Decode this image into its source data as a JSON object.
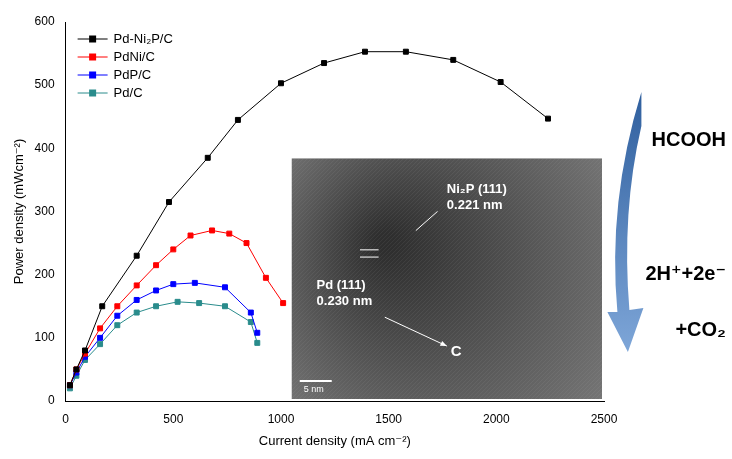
{
  "chart_data": {
    "type": "line",
    "x_label": "Current density (mA cm⁻²)",
    "y_label": "Power density (mWcm⁻²)",
    "xlim": [
      0,
      2500
    ],
    "xticks": [
      0,
      500,
      1000,
      1500,
      2000,
      2500
    ],
    "ylim": [
      0,
      600
    ],
    "yticks": [
      0,
      100,
      200,
      300,
      400,
      500,
      600
    ],
    "grid": false,
    "legend": "upper left",
    "series": [
      {
        "name": "Pd-Ni₂P/C",
        "color": "#000000",
        "marker": "square",
        "x": [
          20,
          50,
          90,
          170,
          330,
          480,
          660,
          800,
          1000,
          1200,
          1390,
          1580,
          1800,
          2020,
          2240
        ],
        "values": [
          25,
          50,
          80,
          150,
          230,
          315,
          385,
          445,
          503,
          535,
          553,
          553,
          540,
          505,
          447
        ]
      },
      {
        "name": "PdNi/C",
        "color": "#ff0000",
        "marker": "square",
        "x": [
          20,
          50,
          90,
          160,
          240,
          330,
          420,
          500,
          580,
          680,
          760,
          840,
          930,
          1010
        ],
        "values": [
          25,
          50,
          75,
          115,
          150,
          183,
          215,
          240,
          262,
          270,
          265,
          250,
          195,
          155
        ]
      },
      {
        "name": "PdP/C",
        "color": "#0000ff",
        "marker": "square",
        "x": [
          20,
          50,
          90,
          160,
          240,
          330,
          420,
          500,
          600,
          740,
          860,
          890
        ],
        "values": [
          25,
          45,
          70,
          100,
          135,
          160,
          175,
          185,
          187,
          180,
          140,
          108
        ]
      },
      {
        "name": "Pd/C",
        "color": "#2a8c8c",
        "marker": "square",
        "x": [
          20,
          50,
          90,
          160,
          240,
          330,
          420,
          520,
          620,
          740,
          860,
          890
        ],
        "values": [
          20,
          40,
          65,
          90,
          120,
          140,
          150,
          157,
          155,
          150,
          125,
          92
        ]
      }
    ],
    "annotations": [
      "HCOOH",
      "2H⁺+2e⁻",
      "+CO₂",
      "Ni₂P (111)",
      "0.221 nm",
      "Pd (111)",
      "0.230 nm",
      "C",
      "5 nm"
    ]
  }
}
